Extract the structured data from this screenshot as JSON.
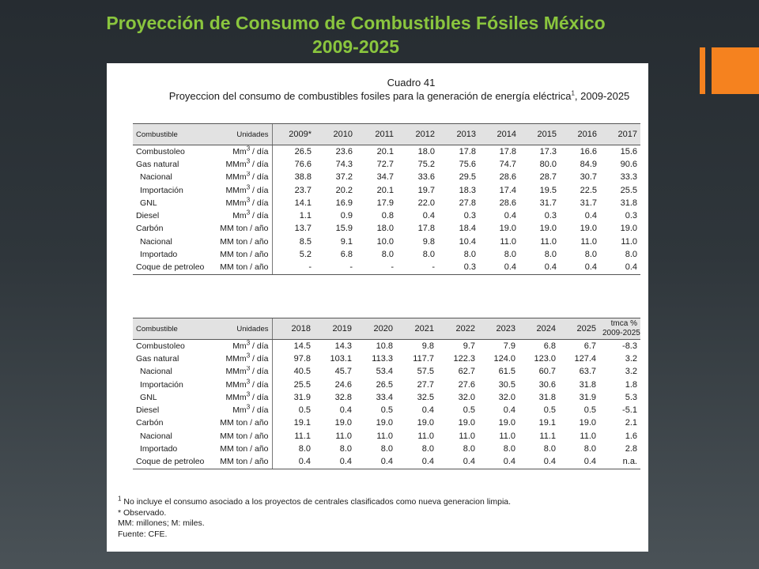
{
  "slide": {
    "title_line1": "Proyección de Consumo de Combustibles Fósiles México",
    "title_line2": "2009-2025",
    "title_color": "#8ac53e",
    "accent_color": "#f5821f"
  },
  "document": {
    "heading_number": "Cuadro 41",
    "heading_title": "Proyeccion del consumo de combustibles fosiles para la generación de energía eléctrica",
    "heading_sup": "1",
    "heading_years": ", 2009-2025",
    "table1": {
      "headers": {
        "combustible": "Combustible",
        "unidades": "Unidades",
        "years": [
          "2009*",
          "2010",
          "2011",
          "2012",
          "2013",
          "2014",
          "2015",
          "2016",
          "2017"
        ]
      },
      "rows": [
        {
          "name": "Combustoleo",
          "unit": "Mm3 / día",
          "values": [
            "26.5",
            "23.6",
            "20.1",
            "18.0",
            "17.8",
            "17.8",
            "17.3",
            "16.6",
            "15.6"
          ]
        },
        {
          "name": "Gas natural",
          "unit": "MMm3 / día",
          "values": [
            "76.6",
            "74.3",
            "72.7",
            "75.2",
            "75.6",
            "74.7",
            "80.0",
            "84.9",
            "90.6"
          ]
        },
        {
          "name": "Nacional",
          "unit": "MMm3 / día",
          "values": [
            "38.8",
            "37.2",
            "34.7",
            "33.6",
            "29.5",
            "28.6",
            "28.7",
            "30.7",
            "33.3"
          ]
        },
        {
          "name": "Importación",
          "unit": "MMm3 / día",
          "values": [
            "23.7",
            "20.2",
            "20.1",
            "19.7",
            "18.3",
            "17.4",
            "19.5",
            "22.5",
            "25.5"
          ]
        },
        {
          "name": "GNL",
          "unit": "MMm3 / día",
          "values": [
            "14.1",
            "16.9",
            "17.9",
            "22.0",
            "27.8",
            "28.6",
            "31.7",
            "31.7",
            "31.8"
          ]
        },
        {
          "name": "Diesel",
          "unit": "Mm3 / día",
          "values": [
            "1.1",
            "0.9",
            "0.8",
            "0.4",
            "0.3",
            "0.4",
            "0.3",
            "0.4",
            "0.3"
          ]
        },
        {
          "name": "Carbón",
          "unit": "MM ton / año",
          "values": [
            "13.7",
            "15.9",
            "18.0",
            "17.8",
            "18.4",
            "19.0",
            "19.0",
            "19.0",
            "19.0"
          ]
        },
        {
          "name": "Nacional",
          "unit": "MM ton / año",
          "values": [
            "8.5",
            "9.1",
            "10.0",
            "9.8",
            "10.4",
            "11.0",
            "11.0",
            "11.0",
            "11.0"
          ]
        },
        {
          "name": "Importado",
          "unit": "MM ton / año",
          "values": [
            "5.2",
            "6.8",
            "8.0",
            "8.0",
            "8.0",
            "8.0",
            "8.0",
            "8.0",
            "8.0"
          ]
        },
        {
          "name": "Coque de petroleo",
          "unit": "MM ton / año",
          "values": [
            "-",
            "-",
            "-",
            "-",
            "0.3",
            "0.4",
            "0.4",
            "0.4",
            "0.4"
          ]
        }
      ]
    },
    "table2": {
      "headers": {
        "combustible": "Combustible",
        "unidades": "Unidades",
        "years": [
          "2018",
          "2019",
          "2020",
          "2021",
          "2022",
          "2023",
          "2024",
          "2025"
        ],
        "tmca_line1": "tmca %",
        "tmca_line2": "2009-2025"
      },
      "rows": [
        {
          "name": "Combustoleo",
          "unit": "Mm3 / día",
          "values": [
            "14.5",
            "14.3",
            "10.8",
            "9.8",
            "9.7",
            "7.9",
            "6.8",
            "6.7"
          ],
          "tmca": "-8.3"
        },
        {
          "name": "Gas natural",
          "unit": "MMm3 / día",
          "values": [
            "97.8",
            "103.1",
            "113.3",
            "117.7",
            "122.3",
            "124.0",
            "123.0",
            "127.4"
          ],
          "tmca": "3.2"
        },
        {
          "name": "Nacional",
          "unit": "MMm3 / día",
          "values": [
            "40.5",
            "45.7",
            "53.4",
            "57.5",
            "62.7",
            "61.5",
            "60.7",
            "63.7"
          ],
          "tmca": "3.2"
        },
        {
          "name": "Importación",
          "unit": "MMm3 / día",
          "values": [
            "25.5",
            "24.6",
            "26.5",
            "27.7",
            "27.6",
            "30.5",
            "30.6",
            "31.8"
          ],
          "tmca": "1.8"
        },
        {
          "name": "GNL",
          "unit": "MMm3 / día",
          "values": [
            "31.9",
            "32.8",
            "33.4",
            "32.5",
            "32.0",
            "32.0",
            "31.8",
            "31.9"
          ],
          "tmca": "5.3"
        },
        {
          "name": "Diesel",
          "unit": "Mm3 / día",
          "values": [
            "0.5",
            "0.4",
            "0.5",
            "0.4",
            "0.5",
            "0.4",
            "0.5",
            "0.5"
          ],
          "tmca": "-5.1"
        },
        {
          "name": "Carbón",
          "unit": "MM ton / año",
          "values": [
            "19.1",
            "19.0",
            "19.0",
            "19.0",
            "19.0",
            "19.0",
            "19.1",
            "19.0"
          ],
          "tmca": "2.1"
        },
        {
          "name": "Nacional",
          "unit": "MM ton / año",
          "values": [
            "11.1",
            "11.0",
            "11.0",
            "11.0",
            "11.0",
            "11.0",
            "11.1",
            "11.0"
          ],
          "tmca": "1.6"
        },
        {
          "name": "Importado",
          "unit": "MM ton / año",
          "values": [
            "8.0",
            "8.0",
            "8.0",
            "8.0",
            "8.0",
            "8.0",
            "8.0",
            "8.0"
          ],
          "tmca": "2.8"
        },
        {
          "name": "Coque de petroleo",
          "unit": "MM ton / año",
          "values": [
            "0.4",
            "0.4",
            "0.4",
            "0.4",
            "0.4",
            "0.4",
            "0.4",
            "0.4"
          ],
          "tmca": "n.a."
        }
      ]
    },
    "notes": {
      "note1_sup": "1",
      "note1": " No incluye el consumo asociado a los proyectos de centrales clasificados como nueva generacion limpia.",
      "note2": "* Observado.",
      "note3": "MM: millones; M: miles.",
      "note4": "Fuente: CFE."
    }
  }
}
